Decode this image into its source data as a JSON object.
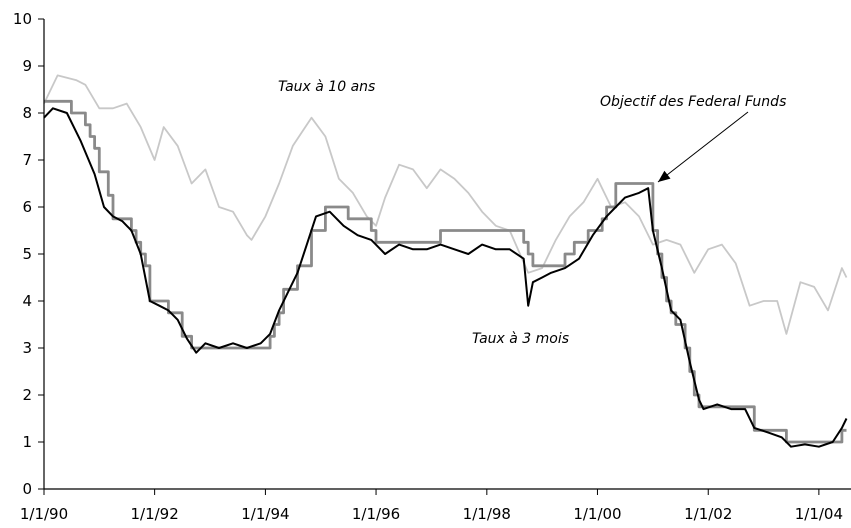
{
  "chart_data": {
    "type": "line",
    "title": "",
    "xlabel": "",
    "ylabel": "",
    "x_ticks": [
      "1/1/90",
      "1/1/92",
      "1/1/94",
      "1/1/96",
      "1/1/98",
      "1/1/00",
      "1/1/02",
      "1/1/04"
    ],
    "x_range": [
      "1990-01-01",
      "2004-07-31"
    ],
    "y_ticks": [
      "0",
      "1",
      "2",
      "3",
      "4",
      "5",
      "6",
      "7",
      "8",
      "9",
      "10"
    ],
    "ylim": [
      0,
      10
    ],
    "grid": false,
    "series": [
      {
        "name": "Taux à 10 ans",
        "color": "#c8c8c8",
        "x": [
          "1990-01",
          "1990-04",
          "1990-08",
          "1990-10",
          "1991-01",
          "1991-04",
          "1991-07",
          "1991-10",
          "1992-01",
          "1992-03",
          "1992-06",
          "1992-09",
          "1992-12",
          "1993-03",
          "1993-06",
          "1993-09",
          "1993-10",
          "1994-01",
          "1994-04",
          "1994-07",
          "1994-11",
          "1995-02",
          "1995-05",
          "1995-08",
          "1995-11",
          "1996-01",
          "1996-03",
          "1996-06",
          "1996-09",
          "1996-12",
          "1997-03",
          "1997-06",
          "1997-09",
          "1997-12",
          "1998-03",
          "1998-06",
          "1998-10",
          "1999-01",
          "1999-04",
          "1999-07",
          "1999-10",
          "2000-01",
          "2000-04",
          "2000-07",
          "2000-10",
          "2001-01",
          "2001-04",
          "2001-07",
          "2001-10",
          "2002-01",
          "2002-04",
          "2002-07",
          "2002-10",
          "2003-01",
          "2003-04",
          "2003-06",
          "2003-09",
          "2003-12",
          "2004-03",
          "2004-06",
          "2004-07"
        ],
        "values": [
          8.2,
          8.8,
          8.7,
          8.6,
          8.1,
          8.1,
          8.2,
          7.7,
          7.0,
          7.7,
          7.3,
          6.5,
          6.8,
          6.0,
          5.9,
          5.4,
          5.3,
          5.8,
          6.5,
          7.3,
          7.9,
          7.5,
          6.6,
          6.3,
          5.8,
          5.6,
          6.2,
          6.9,
          6.8,
          6.4,
          6.8,
          6.6,
          6.3,
          5.9,
          5.6,
          5.5,
          4.6,
          4.7,
          5.3,
          5.8,
          6.1,
          6.6,
          6.0,
          6.1,
          5.8,
          5.2,
          5.3,
          5.2,
          4.6,
          5.1,
          5.2,
          4.8,
          3.9,
          4.0,
          4.0,
          3.3,
          4.4,
          4.3,
          3.8,
          4.7,
          4.5
        ]
      },
      {
        "name": "Objectif des Federal Funds",
        "color": "#8a8a8a",
        "x": [
          "1990-01",
          "1990-07",
          "1990-10",
          "1990-11",
          "1990-12",
          "1991-01",
          "1991-03",
          "1991-04",
          "1991-08",
          "1991-09",
          "1991-10",
          "1991-11",
          "1991-12",
          "1992-04",
          "1992-07",
          "1992-09",
          "1994-02",
          "1994-03",
          "1994-04",
          "1994-05",
          "1994-08",
          "1994-11",
          "1995-02",
          "1995-07",
          "1995-12",
          "1996-01",
          "1997-03",
          "1998-09",
          "1998-10",
          "1998-11",
          "1999-06",
          "1999-08",
          "1999-11",
          "2000-02",
          "2000-03",
          "2000-05",
          "2001-01",
          "2001-02",
          "2001-03",
          "2001-04",
          "2001-05",
          "2001-06",
          "2001-08",
          "2001-09",
          "2001-10",
          "2001-11",
          "2001-12",
          "2002-11",
          "2003-06",
          "2004-06",
          "2004-07"
        ],
        "values": [
          8.25,
          8.0,
          7.75,
          7.5,
          7.25,
          6.75,
          6.25,
          5.75,
          5.5,
          5.25,
          5.0,
          4.75,
          4.0,
          3.75,
          3.25,
          3.0,
          3.25,
          3.5,
          3.75,
          4.25,
          4.75,
          5.5,
          6.0,
          5.75,
          5.5,
          5.25,
          5.5,
          5.25,
          5.0,
          4.75,
          5.0,
          5.25,
          5.5,
          5.75,
          6.0,
          6.5,
          5.5,
          5.0,
          4.5,
          4.0,
          3.75,
          3.5,
          3.0,
          2.5,
          2.0,
          1.75,
          1.75,
          1.25,
          1.0,
          1.25,
          1.25
        ]
      },
      {
        "name": "Taux à 3 mois",
        "color": "#000000",
        "x": [
          "1990-01",
          "1990-03",
          "1990-06",
          "1990-09",
          "1990-12",
          "1991-02",
          "1991-04",
          "1991-06",
          "1991-08",
          "1991-10",
          "1991-12",
          "1992-02",
          "1992-04",
          "1992-06",
          "1992-08",
          "1992-10",
          "1992-12",
          "1993-03",
          "1993-06",
          "1993-09",
          "1993-12",
          "1994-02",
          "1994-04",
          "1994-06",
          "1994-08",
          "1994-10",
          "1994-12",
          "1995-03",
          "1995-06",
          "1995-09",
          "1995-12",
          "1996-03",
          "1996-06",
          "1996-09",
          "1996-12",
          "1997-03",
          "1997-06",
          "1997-09",
          "1997-12",
          "1998-03",
          "1998-06",
          "1998-09",
          "1998-10",
          "1998-11",
          "1999-01",
          "1999-03",
          "1999-06",
          "1999-09",
          "1999-12",
          "2000-03",
          "2000-05",
          "2000-07",
          "2000-10",
          "2000-12",
          "2001-01",
          "2001-03",
          "2001-05",
          "2001-07",
          "2001-09",
          "2001-11",
          "2001-12",
          "2002-03",
          "2002-06",
          "2002-09",
          "2002-11",
          "2003-02",
          "2003-05",
          "2003-07",
          "2003-10",
          "2004-01",
          "2004-04",
          "2004-06",
          "2004-07"
        ],
        "values": [
          7.9,
          8.1,
          8.0,
          7.4,
          6.7,
          6.0,
          5.8,
          5.7,
          5.5,
          5.0,
          4.0,
          3.9,
          3.8,
          3.6,
          3.2,
          2.9,
          3.1,
          3.0,
          3.1,
          3.0,
          3.1,
          3.3,
          3.8,
          4.2,
          4.6,
          5.2,
          5.8,
          5.9,
          5.6,
          5.4,
          5.3,
          5.0,
          5.2,
          5.1,
          5.1,
          5.2,
          5.1,
          5.0,
          5.2,
          5.1,
          5.1,
          4.9,
          3.9,
          4.4,
          4.5,
          4.6,
          4.7,
          4.9,
          5.4,
          5.8,
          6.0,
          6.2,
          6.3,
          6.4,
          5.5,
          4.7,
          3.8,
          3.6,
          2.7,
          1.9,
          1.7,
          1.8,
          1.7,
          1.7,
          1.3,
          1.2,
          1.1,
          0.9,
          0.95,
          0.9,
          1.0,
          1.3,
          1.5
        ]
      }
    ],
    "annotations": [
      {
        "id": "ten-year",
        "text": "Taux à 10 ans"
      },
      {
        "id": "fed-funds",
        "text": "Objectif des Federal Funds"
      },
      {
        "id": "three-month",
        "text": "Taux à 3 mois"
      }
    ]
  }
}
